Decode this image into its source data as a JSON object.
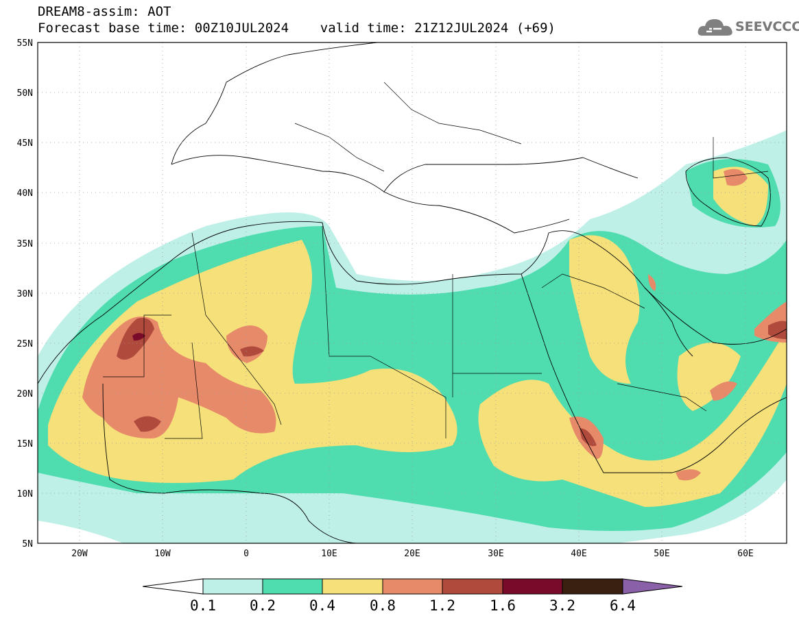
{
  "header": {
    "title_line1": "DREAM8-assim: AOT",
    "title_line2": "Forecast base time: 00Z10JUL2024    valid time: 21Z12JUL2024 (+69)",
    "logo_text": "SEEVCCC"
  },
  "map": {
    "lon_range": [
      -25,
      65
    ],
    "lat_range": [
      5,
      55
    ],
    "lat_ticks": [
      "55N",
      "50N",
      "45N",
      "40N",
      "35N",
      "30N",
      "25N",
      "20N",
      "15N",
      "10N",
      "5N"
    ],
    "lon_ticks": [
      "20W",
      "10W",
      "0",
      "10E",
      "20E",
      "30E",
      "40E",
      "50E",
      "60E"
    ]
  },
  "colorbar": {
    "labels": [
      "0.1",
      "0.2",
      "0.4",
      "0.8",
      "1.2",
      "1.6",
      "3.2",
      "6.4"
    ],
    "colors": [
      "#bff0e8",
      "#4fdcaf",
      "#f5e07a",
      "#e68a6a",
      "#b04a3c",
      "#7a0a2a",
      "#3a2010",
      "#8a60a8"
    ]
  }
}
